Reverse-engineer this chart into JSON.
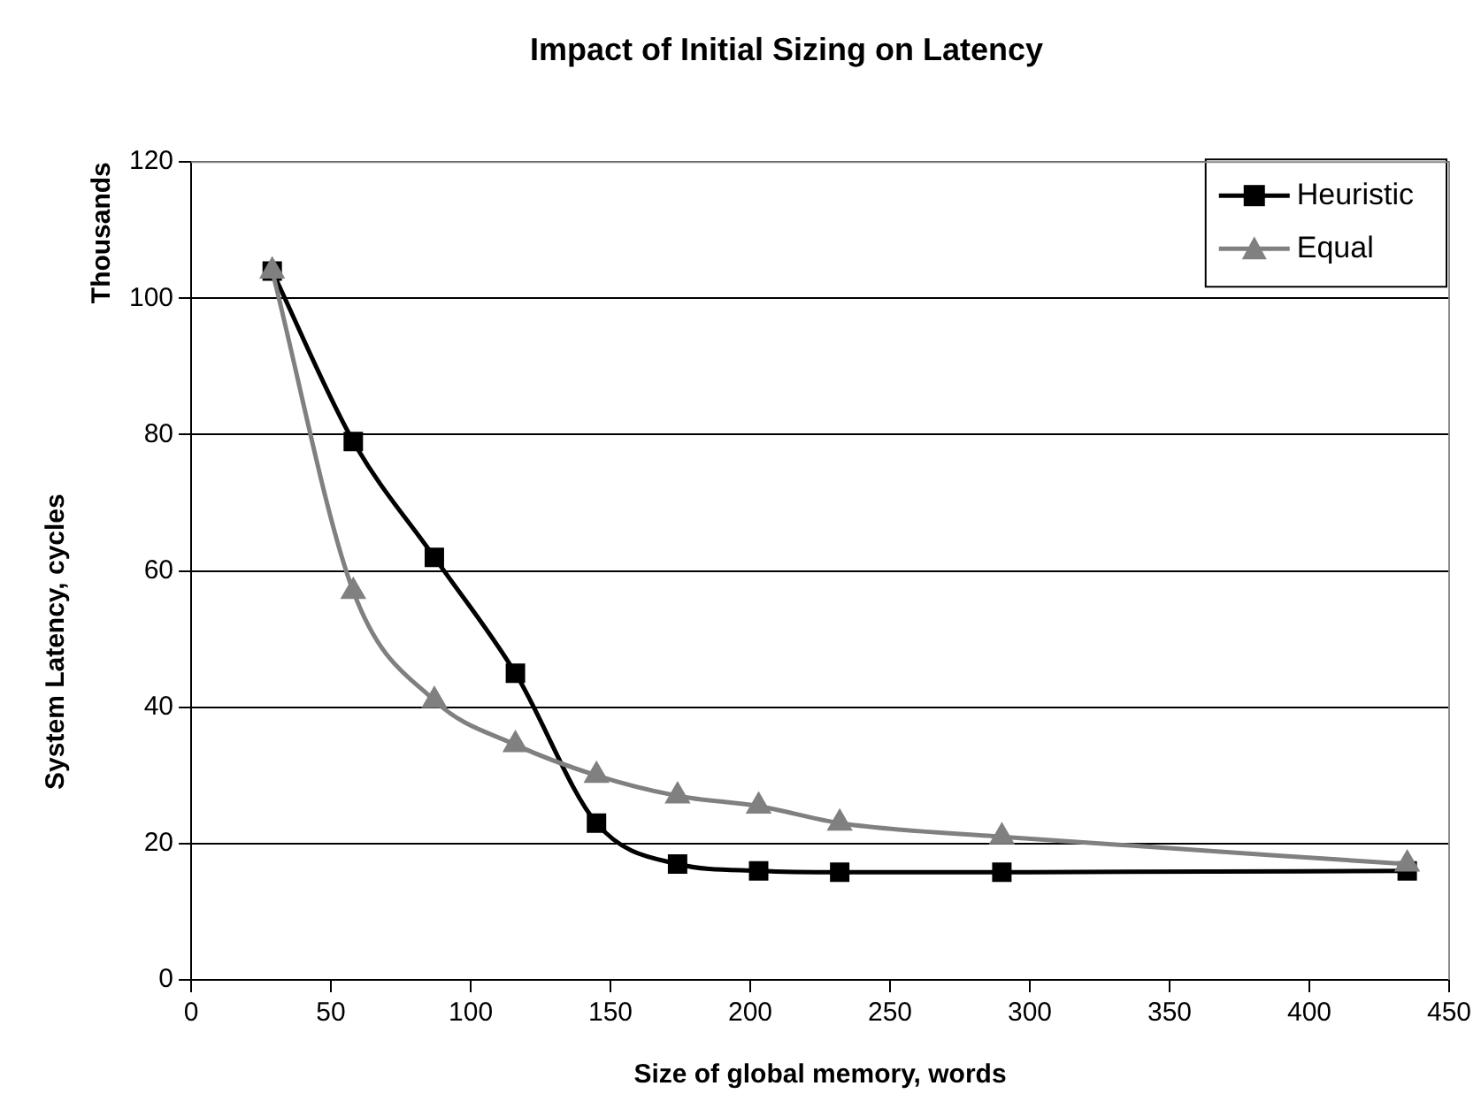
{
  "chart_data": {
    "type": "line",
    "title": "Impact of Initial Sizing on Latency",
    "xlabel": "Size of global memory, words",
    "ylabel": "System Latency, cycles",
    "annotations": [
      "Thousands"
    ],
    "x": [
      29,
      58,
      87,
      116,
      145,
      174,
      203,
      232,
      290,
      435
    ],
    "series": [
      {
        "name": "Heuristic",
        "color": "#000000",
        "marker": "square",
        "values": [
          104,
          79,
          62,
          45,
          23,
          17,
          16,
          15.8,
          15.8,
          16
        ]
      },
      {
        "name": "Equal",
        "color": "#808080",
        "marker": "triangle",
        "values": [
          104,
          57,
          41,
          34.5,
          30,
          27,
          25.5,
          23,
          21,
          17
        ]
      }
    ],
    "xlim": [
      0,
      450
    ],
    "xticks": [
      0,
      50,
      100,
      150,
      200,
      250,
      300,
      350,
      400,
      450
    ],
    "ylim": [
      0,
      120
    ],
    "yticks": [
      0,
      20,
      40,
      60,
      80,
      100,
      120
    ],
    "grid": "y",
    "legend": "top right",
    "line_style": "solid"
  }
}
